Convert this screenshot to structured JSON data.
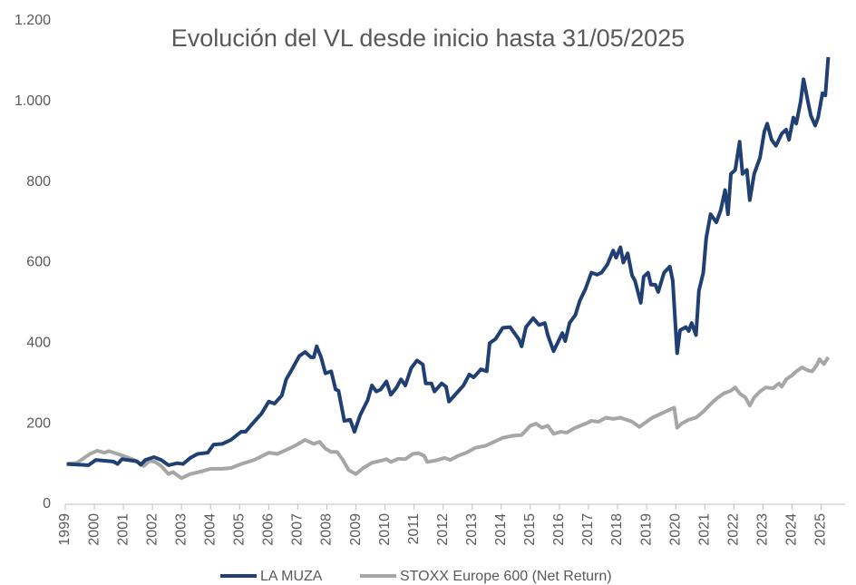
{
  "chart_data": {
    "type": "line",
    "title": "Evolución del VL desde inicio hasta 31/05/2025",
    "xlim": [
      1999,
      2025.83
    ],
    "xticks": [
      1999,
      2000,
      2001,
      2002,
      2003,
      2004,
      2005,
      2006,
      2007,
      2008,
      2009,
      2010,
      2011,
      2012,
      2013,
      2014,
      2015,
      2016,
      2017,
      2018,
      2019,
      2020,
      2021,
      2022,
      2023,
      2024,
      2025
    ],
    "ylim": [
      0,
      1200
    ],
    "yticks": [
      0,
      200,
      400,
      600,
      800,
      {
        "value": 1000,
        "label": "1.000"
      },
      {
        "value": 1200,
        "label": "1.200"
      }
    ],
    "legend": "bottom",
    "series": [
      {
        "name": "LA MUZA",
        "color": "#203f72",
        "x": [
          1999.05,
          1999.8,
          2000.05,
          2000.65,
          2000.8,
          2000.95,
          2001.45,
          2001.6,
          2001.75,
          2002.05,
          2002.3,
          2002.55,
          2002.85,
          2003.05,
          2003.3,
          2003.55,
          2003.9,
          2004.1,
          2004.4,
          2004.7,
          2005.05,
          2005.2,
          2005.5,
          2005.75,
          2006.0,
          2006.2,
          2006.45,
          2006.6,
          2006.8,
          2007.05,
          2007.25,
          2007.45,
          2007.55,
          2007.65,
          2007.8,
          2007.95,
          2008.15,
          2008.3,
          2008.4,
          2008.6,
          2008.8,
          2008.95,
          2009.15,
          2009.4,
          2009.55,
          2009.7,
          2009.85,
          2010.05,
          2010.2,
          2010.4,
          2010.55,
          2010.7,
          2010.9,
          2011.1,
          2011.3,
          2011.4,
          2011.6,
          2011.7,
          2011.95,
          2012.1,
          2012.2,
          2012.45,
          2012.7,
          2012.9,
          2013.05,
          2013.3,
          2013.5,
          2013.6,
          2013.8,
          2014.05,
          2014.3,
          2014.45,
          2014.6,
          2014.7,
          2014.85,
          2015.1,
          2015.3,
          2015.5,
          2015.6,
          2015.8,
          2016.0,
          2016.1,
          2016.2,
          2016.35,
          2016.55,
          2016.7,
          2016.9,
          2017.1,
          2017.3,
          2017.45,
          2017.65,
          2017.85,
          2017.95,
          2018.1,
          2018.2,
          2018.35,
          2018.5,
          2018.6,
          2018.8,
          2018.9,
          2019.05,
          2019.15,
          2019.3,
          2019.4,
          2019.6,
          2019.8,
          2019.9,
          2020.05,
          2020.15,
          2020.35,
          2020.45,
          2020.55,
          2020.7,
          2020.8,
          2020.95,
          2021.05,
          2021.2,
          2021.4,
          2021.55,
          2021.7,
          2021.8,
          2021.9,
          2022.05,
          2022.2,
          2022.3,
          2022.45,
          2022.55,
          2022.7,
          2022.9,
          2023.05,
          2023.15,
          2023.3,
          2023.45,
          2023.65,
          2023.8,
          2023.9,
          2024.05,
          2024.15,
          2024.3,
          2024.4,
          2024.55,
          2024.65,
          2024.8,
          2024.9,
          2025.05,
          2025.15,
          2025.25
        ],
        "values": [
          100,
          97,
          110,
          106,
          100,
          112,
          107,
          98,
          110,
          117,
          110,
          97,
          102,
          100,
          115,
          125,
          128,
          148,
          150,
          160,
          180,
          180,
          205,
          225,
          255,
          250,
          270,
          310,
          335,
          368,
          378,
          365,
          365,
          392,
          365,
          325,
          330,
          285,
          282,
          207,
          210,
          180,
          222,
          258,
          295,
          280,
          285,
          305,
          272,
          290,
          310,
          295,
          338,
          357,
          347,
          300,
          300,
          280,
          300,
          292,
          255,
          275,
          295,
          322,
          315,
          335,
          330,
          400,
          410,
          438,
          440,
          425,
          410,
          392,
          440,
          462,
          445,
          450,
          420,
          380,
          410,
          425,
          405,
          450,
          470,
          505,
          535,
          575,
          570,
          575,
          595,
          630,
          612,
          638,
          600,
          623,
          568,
          555,
          500,
          565,
          575,
          545,
          545,
          527,
          575,
          590,
          555,
          375,
          432,
          440,
          430,
          450,
          420,
          530,
          575,
          660,
          720,
          700,
          730,
          780,
          720,
          820,
          830,
          900,
          820,
          830,
          755,
          820,
          860,
          925,
          945,
          905,
          890,
          920,
          930,
          905,
          960,
          945,
          1000,
          1055,
          1000,
          965,
          940,
          960,
          1020,
          1015,
          1110
        ]
      },
      {
        "name": "STOXX Europe 600 (Net Return)",
        "color": "#a6a6a6",
        "x": [
          1999.05,
          1999.4,
          1999.85,
          2000.1,
          2000.35,
          2000.5,
          2000.8,
          2001.0,
          2001.3,
          2001.5,
          2001.7,
          2001.9,
          2002.1,
          2002.3,
          2002.55,
          2002.7,
          2003.0,
          2003.3,
          2003.6,
          2004.0,
          2004.4,
          2004.7,
          2005.05,
          2005.5,
          2006.0,
          2006.3,
          2006.6,
          2006.9,
          2007.25,
          2007.55,
          2007.75,
          2007.95,
          2008.15,
          2008.35,
          2008.55,
          2008.75,
          2009.0,
          2009.25,
          2009.55,
          2009.85,
          2010.05,
          2010.2,
          2010.45,
          2010.7,
          2010.95,
          2011.15,
          2011.35,
          2011.45,
          2011.7,
          2012.05,
          2012.25,
          2012.5,
          2012.8,
          2013.1,
          2013.45,
          2013.75,
          2014.05,
          2014.4,
          2014.7,
          2015.0,
          2015.2,
          2015.4,
          2015.6,
          2015.8,
          2016.05,
          2016.25,
          2016.55,
          2016.9,
          2017.1,
          2017.35,
          2017.6,
          2017.85,
          2018.1,
          2018.3,
          2018.5,
          2018.75,
          2019.0,
          2019.2,
          2019.5,
          2019.8,
          2019.95,
          2020.05,
          2020.2,
          2020.45,
          2020.7,
          2020.95,
          2021.15,
          2021.4,
          2021.65,
          2021.9,
          2022.05,
          2022.2,
          2022.4,
          2022.55,
          2022.7,
          2022.9,
          2023.1,
          2023.35,
          2023.55,
          2023.65,
          2023.8,
          2024.0,
          2024.15,
          2024.35,
          2024.55,
          2024.7,
          2024.85,
          2024.95,
          2025.1,
          2025.25
        ],
        "values": [
          100,
          103,
          125,
          133,
          128,
          132,
          125,
          120,
          112,
          105,
          95,
          108,
          105,
          95,
          75,
          80,
          65,
          75,
          80,
          88,
          88,
          90,
          100,
          110,
          128,
          125,
          135,
          145,
          160,
          150,
          155,
          138,
          130,
          130,
          110,
          85,
          75,
          90,
          103,
          108,
          112,
          105,
          113,
          112,
          125,
          127,
          120,
          105,
          108,
          115,
          110,
          120,
          128,
          140,
          145,
          155,
          165,
          170,
          172,
          195,
          200,
          190,
          195,
          175,
          180,
          178,
          190,
          200,
          207,
          205,
          215,
          212,
          215,
          210,
          205,
          192,
          205,
          215,
          225,
          235,
          240,
          190,
          200,
          210,
          215,
          230,
          245,
          262,
          275,
          282,
          290,
          275,
          265,
          245,
          265,
          280,
          290,
          288,
          300,
          292,
          310,
          320,
          330,
          340,
          332,
          330,
          345,
          360,
          348,
          365
        ]
      }
    ]
  }
}
